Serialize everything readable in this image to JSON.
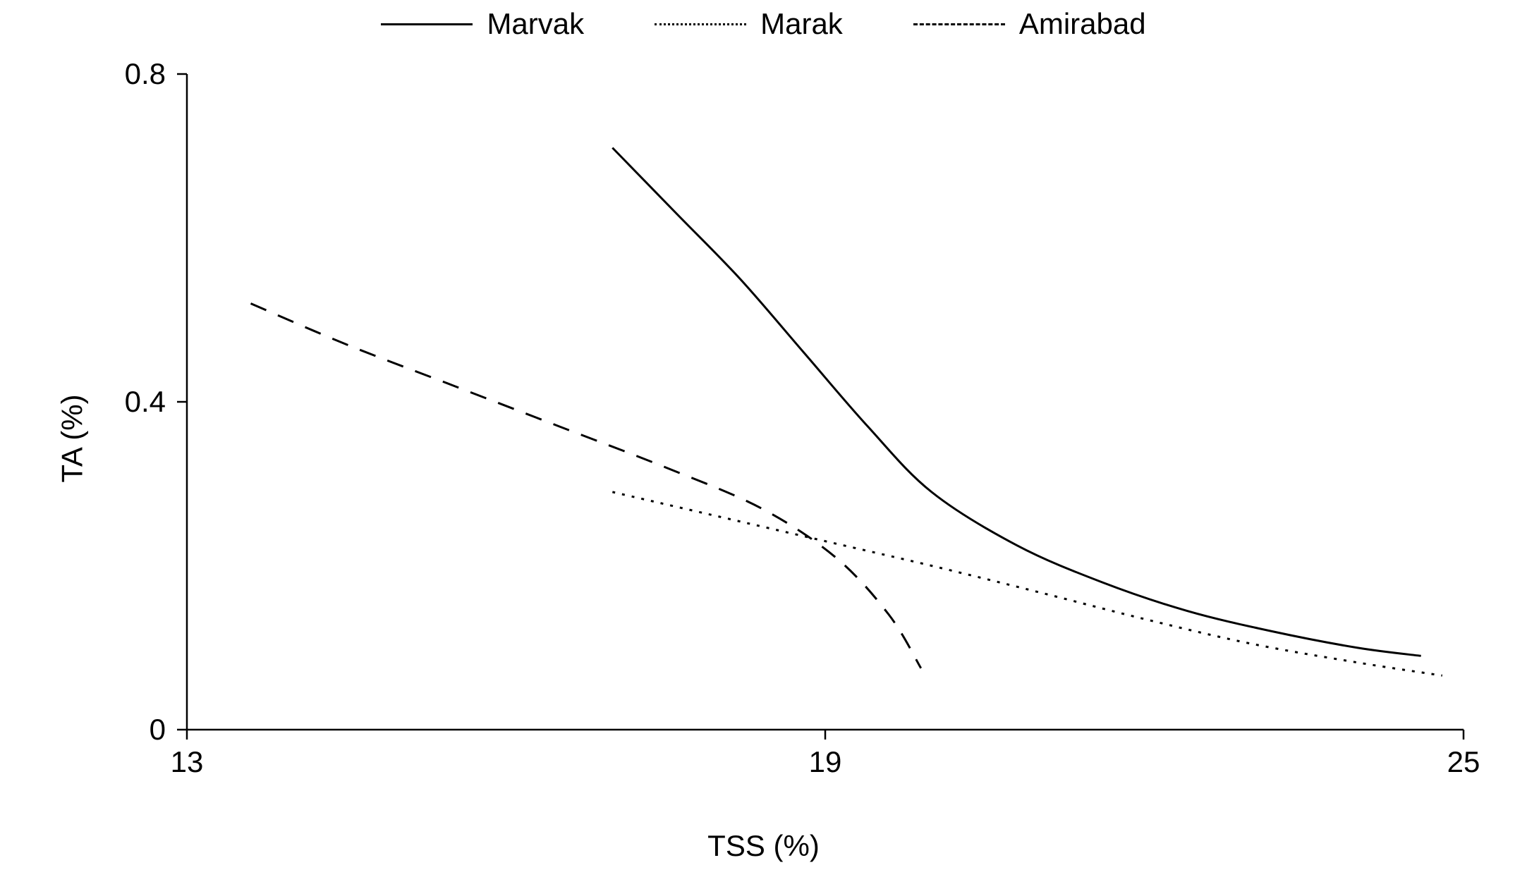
{
  "chart": {
    "type": "line",
    "background_color": "#ffffff",
    "axis_color": "#000000",
    "axis_line_width": 2.5,
    "line_width": 3,
    "x_axis": {
      "label": "TSS (%)",
      "min": 13,
      "max": 25,
      "ticks": [
        13,
        19,
        25
      ]
    },
    "y_axis": {
      "label": "TA (%)",
      "min": 0,
      "max": 0.8,
      "ticks": [
        0,
        0.4,
        0.8
      ]
    },
    "legend": {
      "items": [
        {
          "label": "Marvak",
          "dash": "solid"
        },
        {
          "label": "Marak",
          "dash": "dotted"
        },
        {
          "label": "Amirabad",
          "dash": "dashed"
        }
      ]
    },
    "series": {
      "marvak": {
        "label": "Marvak",
        "dash": "solid",
        "color": "#000000",
        "points": [
          {
            "x": 17.0,
            "y": 0.71
          },
          {
            "x": 17.6,
            "y": 0.63
          },
          {
            "x": 18.2,
            "y": 0.55
          },
          {
            "x": 18.8,
            "y": 0.46
          },
          {
            "x": 19.4,
            "y": 0.37
          },
          {
            "x": 20.0,
            "y": 0.29
          },
          {
            "x": 20.8,
            "y": 0.225
          },
          {
            "x": 21.6,
            "y": 0.18
          },
          {
            "x": 22.4,
            "y": 0.145
          },
          {
            "x": 23.2,
            "y": 0.12
          },
          {
            "x": 24.0,
            "y": 0.1
          },
          {
            "x": 24.6,
            "y": 0.09
          }
        ]
      },
      "marak": {
        "label": "Marak",
        "dash": "dotted",
        "color": "#000000",
        "points": [
          {
            "x": 17.0,
            "y": 0.29
          },
          {
            "x": 18.0,
            "y": 0.26
          },
          {
            "x": 19.0,
            "y": 0.23
          },
          {
            "x": 20.0,
            "y": 0.2
          },
          {
            "x": 21.0,
            "y": 0.168
          },
          {
            "x": 22.0,
            "y": 0.135
          },
          {
            "x": 23.0,
            "y": 0.105
          },
          {
            "x": 24.0,
            "y": 0.082
          },
          {
            "x": 24.8,
            "y": 0.066
          }
        ]
      },
      "amirabad": {
        "label": "Amirabad",
        "dash": "dashed",
        "color": "#000000",
        "points": [
          {
            "x": 13.6,
            "y": 0.52
          },
          {
            "x": 14.5,
            "y": 0.47
          },
          {
            "x": 15.5,
            "y": 0.42
          },
          {
            "x": 16.5,
            "y": 0.37
          },
          {
            "x": 17.5,
            "y": 0.32
          },
          {
            "x": 18.4,
            "y": 0.27
          },
          {
            "x": 19.1,
            "y": 0.21
          },
          {
            "x": 19.6,
            "y": 0.14
          },
          {
            "x": 19.9,
            "y": 0.075
          }
        ]
      }
    },
    "font_size": 42
  }
}
